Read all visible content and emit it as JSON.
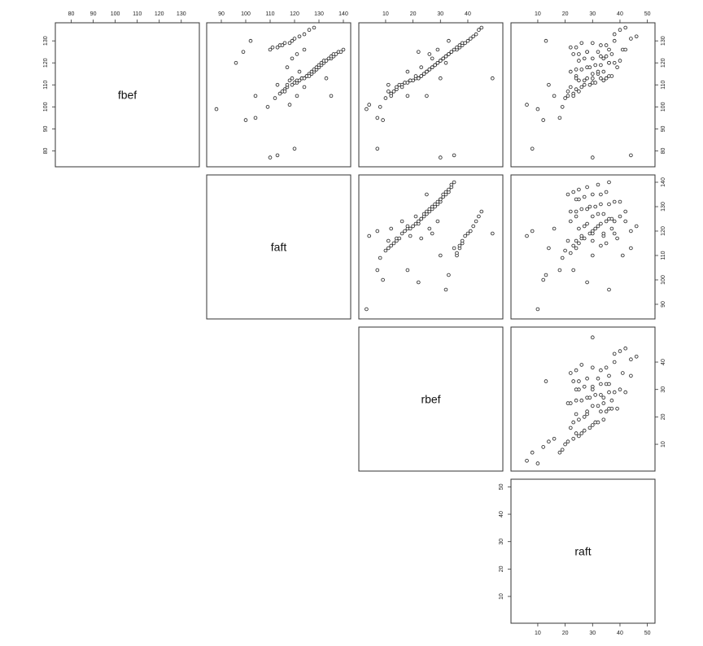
{
  "chart_data": {
    "type": "scatter-matrix",
    "variables": [
      "fbef",
      "faft",
      "rbef",
      "raft"
    ],
    "axes": {
      "fbef": {
        "range": [
          75,
          136
        ],
        "ticks": [
          80,
          90,
          100,
          110,
          120,
          130
        ],
        "tick_labels": [
          "80",
          "90",
          "100",
          "110",
          "120",
          "130"
        ]
      },
      "faft": {
        "range": [
          86,
          141
        ],
        "ticks": [
          90,
          100,
          110,
          120,
          130,
          140
        ],
        "tick_labels": [
          "90",
          "100",
          "110",
          "120",
          "130",
          "140"
        ]
      },
      "rbef": {
        "range": [
          2,
          51
        ],
        "ticks": [
          10,
          20,
          30,
          40
        ],
        "tick_labels": [
          "10",
          "20",
          "30",
          "40"
        ]
      },
      "raft": {
        "range": [
          2,
          51
        ],
        "ticks": [
          10,
          20,
          30,
          40,
          50
        ],
        "tick_labels": [
          "10",
          "20",
          "30",
          "40",
          "50"
        ]
      }
    },
    "tick_positions": {
      "top": [
        "faft",
        "rbef",
        "raft"
      ],
      "right": [
        "fbef",
        "faft",
        "rbef"
      ],
      "bottom": [
        "raft"
      ],
      "top_extra": "fbef",
      "right_extra": "raft"
    },
    "grid": false,
    "legend": "none",
    "records": [
      [
        99,
        88,
        3,
        10
      ],
      [
        95,
        104,
        7,
        18
      ],
      [
        100,
        109,
        8,
        19
      ],
      [
        104,
        112,
        10,
        20
      ],
      [
        106,
        114,
        12,
        23
      ],
      [
        107,
        115,
        13,
        25
      ],
      [
        108,
        116,
        14,
        24
      ],
      [
        109,
        117,
        14,
        26
      ],
      [
        110,
        117,
        15,
        27
      ],
      [
        110,
        119,
        16,
        29
      ],
      [
        111,
        120,
        17,
        30
      ],
      [
        111,
        121,
        18,
        31
      ],
      [
        112,
        121,
        19,
        25
      ],
      [
        112,
        122,
        20,
        27
      ],
      [
        113,
        123,
        21,
        28
      ],
      [
        113,
        123,
        22,
        33
      ],
      [
        113,
        124,
        22,
        35
      ],
      [
        114,
        125,
        23,
        36
      ],
      [
        114,
        125,
        23,
        37
      ],
      [
        115,
        126,
        24,
        30
      ],
      [
        115,
        127,
        24,
        32
      ],
      [
        116,
        127,
        25,
        34
      ],
      [
        116,
        128,
        25,
        22
      ],
      [
        117,
        128,
        26,
        24
      ],
      [
        117,
        129,
        26,
        26
      ],
      [
        118,
        129,
        27,
        28
      ],
      [
        118,
        130,
        27,
        29
      ],
      [
        119,
        130,
        28,
        31
      ],
      [
        119,
        131,
        28,
        33
      ],
      [
        120,
        131,
        29,
        36
      ],
      [
        120,
        132,
        29,
        38
      ],
      [
        121,
        132,
        30,
        40
      ],
      [
        121,
        133,
        30,
        25
      ],
      [
        122,
        134,
        31,
        27
      ],
      [
        122,
        135,
        31,
        30
      ],
      [
        123,
        135,
        32,
        33
      ],
      [
        123,
        136,
        32,
        35
      ],
      [
        124,
        136,
        33,
        23
      ],
      [
        124,
        137,
        33,
        25
      ],
      [
        125,
        138,
        34,
        28
      ],
      [
        125,
        139,
        34,
        32
      ],
      [
        126,
        140,
        35,
        36
      ],
      [
        126,
        110,
        36,
        41
      ],
      [
        127,
        111,
        36,
        22
      ],
      [
        127,
        113,
        37,
        24
      ],
      [
        128,
        114,
        37,
        33
      ],
      [
        128,
        115,
        38,
        35
      ],
      [
        129,
        116,
        38,
        30
      ],
      [
        129,
        118,
        39,
        26
      ],
      [
        130,
        119,
        40,
        38
      ],
      [
        131,
        120,
        41,
        44
      ],
      [
        132,
        122,
        42,
        46
      ],
      [
        133,
        124,
        43,
        38
      ],
      [
        135,
        126,
        44,
        40
      ],
      [
        136,
        128,
        45,
        42
      ],
      [
        105,
        121,
        12,
        16
      ],
      [
        107,
        116,
        11,
        21
      ],
      [
        109,
        124,
        16,
        22
      ],
      [
        112,
        118,
        19,
        34
      ],
      [
        114,
        126,
        21,
        24
      ],
      [
        116,
        122,
        18,
        32
      ],
      [
        118,
        117,
        23,
        39
      ],
      [
        122,
        119,
        27,
        34
      ],
      [
        124,
        121,
        26,
        37
      ],
      [
        126,
        124,
        29,
        42
      ],
      [
        110,
        113,
        11,
        14
      ],
      [
        94,
        100,
        9,
        12
      ],
      [
        81,
        120,
        7,
        8
      ],
      [
        78,
        113,
        35,
        44
      ],
      [
        77,
        110,
        30,
        30
      ],
      [
        105,
        135,
        25,
        21
      ],
      [
        113,
        133,
        30,
        24
      ],
      [
        120,
        96,
        32,
        36
      ],
      [
        125,
        99,
        22,
        28
      ],
      [
        105,
        104,
        18,
        23
      ],
      [
        130,
        102,
        33,
        13
      ],
      [
        101,
        118,
        4,
        6
      ],
      [
        113,
        119,
        49,
        30
      ]
    ]
  }
}
